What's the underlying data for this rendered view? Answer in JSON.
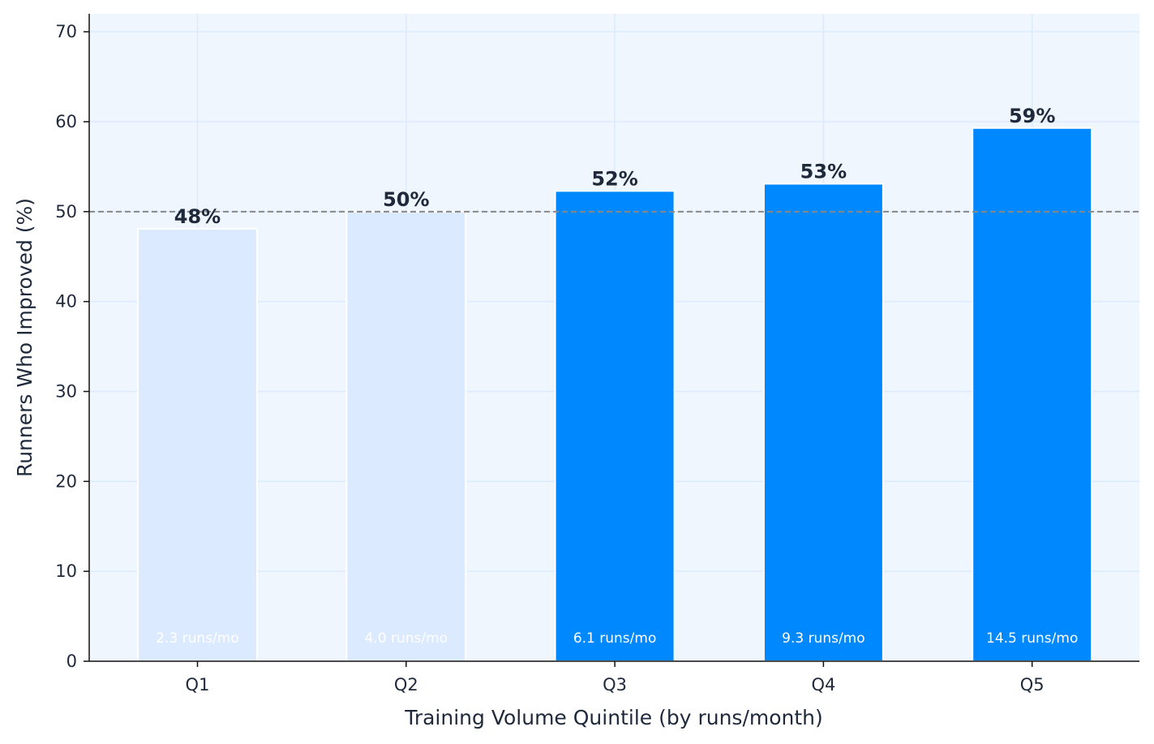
{
  "chart_data": {
    "type": "bar",
    "title": "",
    "xlabel": "Training Volume Quintile (by runs/month)",
    "ylabel": "Runners Who Improved (%)",
    "categories": [
      "Q1",
      "Q2",
      "Q3",
      "Q4",
      "Q5"
    ],
    "values": [
      48.1,
      50.0,
      52.3,
      53.1,
      59.3
    ],
    "value_labels": [
      "48%",
      "50%",
      "52%",
      "53%",
      "59%"
    ],
    "bar_annotations": [
      "2.3 runs/mo",
      "4.0 runs/mo",
      "6.1 runs/mo",
      "9.3 runs/mo",
      "14.5 runs/mo"
    ],
    "bar_colors": [
      "#dbeafe",
      "#dbeafe",
      "#0088ff",
      "#0088ff",
      "#0088ff"
    ],
    "ylim": [
      0,
      72
    ],
    "yticks": [
      0,
      10,
      20,
      30,
      40,
      50,
      60,
      70
    ],
    "reference_line": {
      "y": 50,
      "style": "dashed",
      "color": "#888888"
    },
    "grid": true,
    "colors": {
      "plot_background": "#eff6fd",
      "grid": "#dbeafe",
      "text": "#1e293b"
    }
  }
}
